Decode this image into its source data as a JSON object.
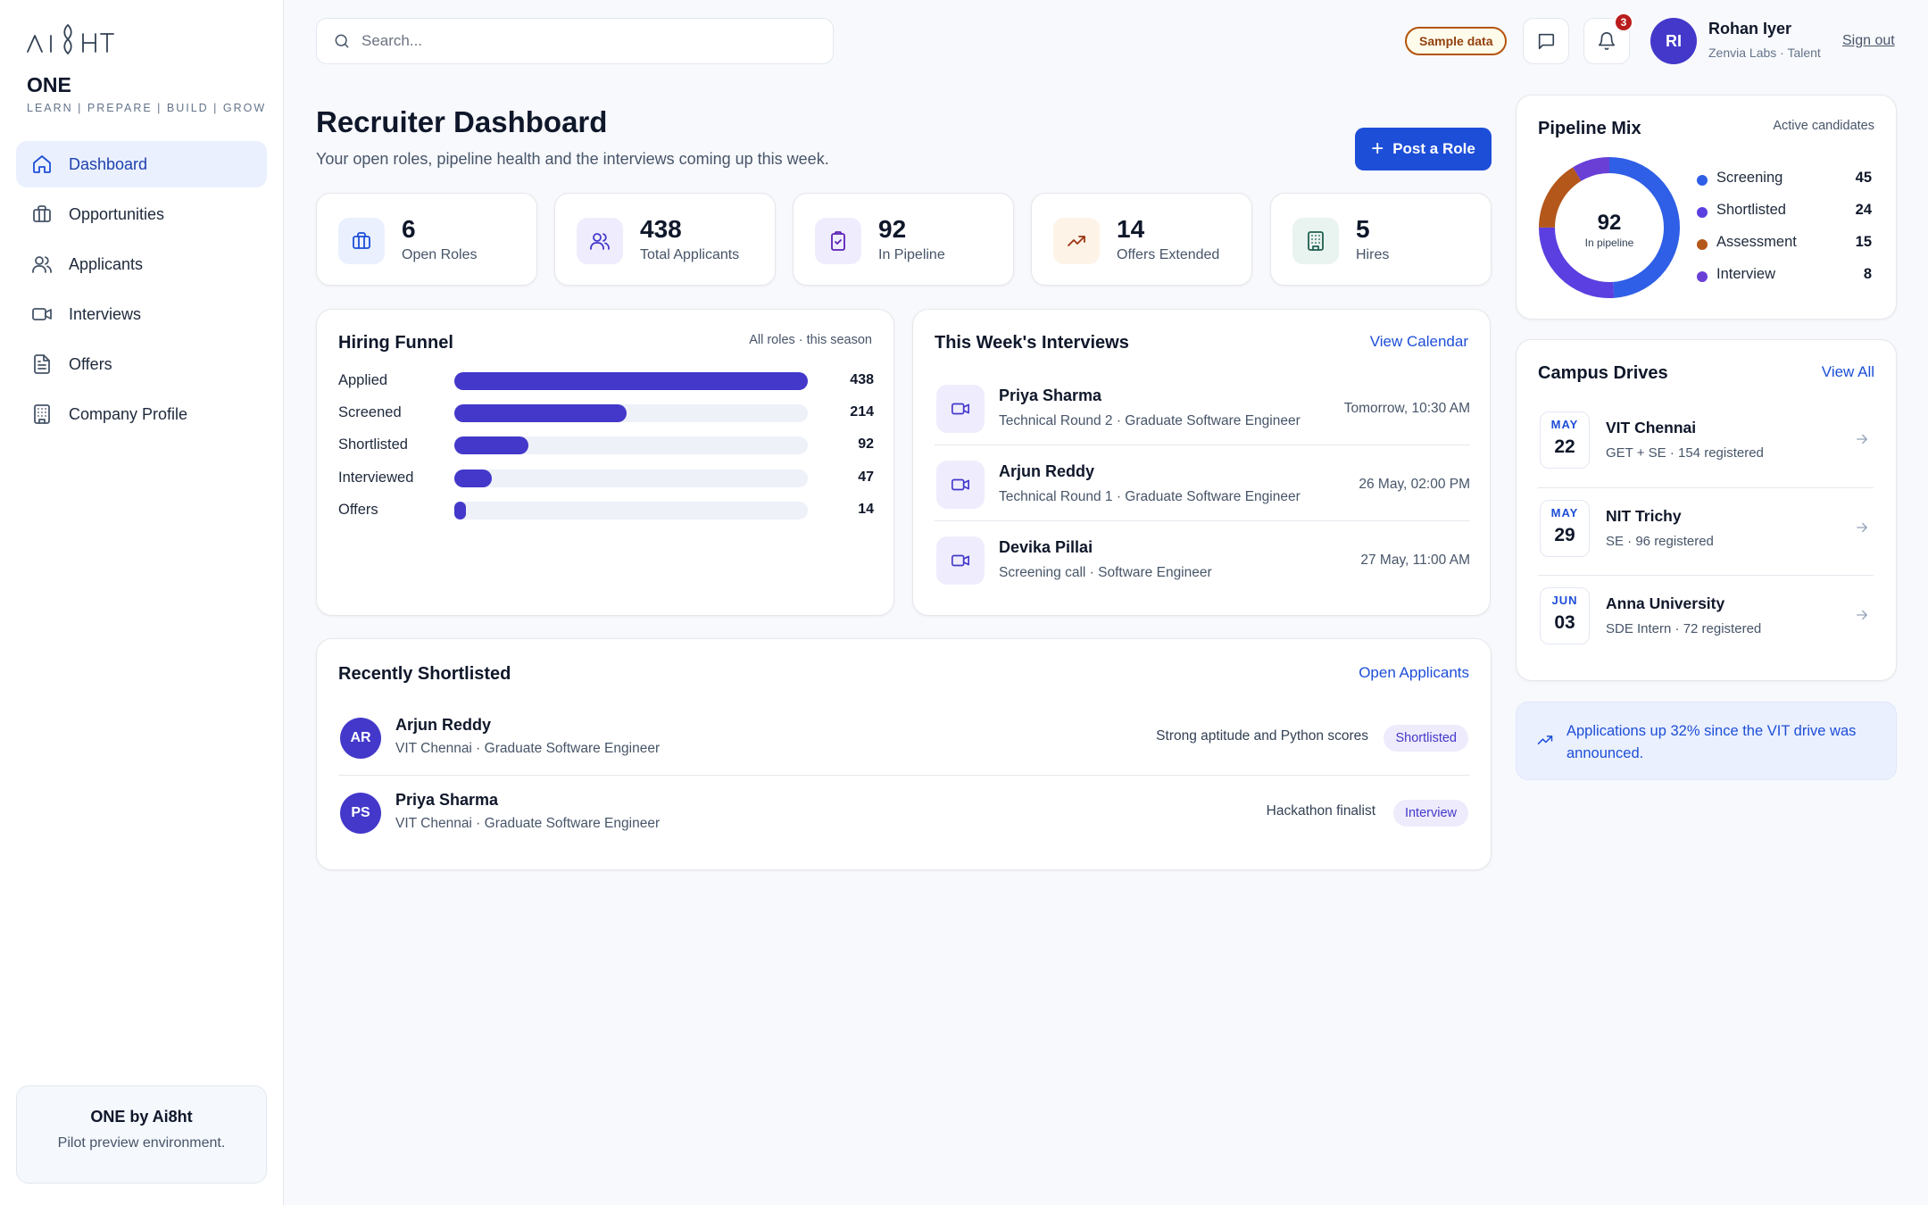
{
  "app": {
    "logo_text": "AI8HT",
    "brand": "ONE",
    "tagline": "LEARN | PREPARE | BUILD | GROW"
  },
  "sidebar": {
    "items": [
      {
        "label": "Dashboard",
        "icon": "home-icon",
        "active": true
      },
      {
        "label": "Opportunities",
        "icon": "briefcase-icon"
      },
      {
        "label": "Applicants",
        "icon": "users-icon"
      },
      {
        "label": "Interviews",
        "icon": "video-icon"
      },
      {
        "label": "Offers",
        "icon": "document-icon"
      },
      {
        "label": "Company Profile",
        "icon": "building-icon"
      }
    ],
    "footer_title": "ONE by Ai8ht",
    "footer_text": "Pilot preview environment."
  },
  "header": {
    "search_placeholder": "Search...",
    "sample_badge": "Sample data",
    "notification_count": "3",
    "user_initials": "RI",
    "user_name": "Rohan Iyer",
    "user_org": "Zenvia Labs · Talent",
    "sign_out": "Sign out"
  },
  "page": {
    "title": "Recruiter Dashboard",
    "subtitle": "Your open roles, pipeline health and the interviews coming up this week.",
    "post_role": "Post a Role"
  },
  "stats": [
    {
      "value": "6",
      "label": "Open Roles",
      "icon": "briefcase-icon",
      "bg": "#eaf0fe",
      "fg": "#1d4ed8"
    },
    {
      "value": "438",
      "label": "Total Applicants",
      "icon": "users-icon",
      "bg": "#efedfd",
      "fg": "#4338ca"
    },
    {
      "value": "92",
      "label": "In Pipeline",
      "icon": "clipboard-check-icon",
      "bg": "#efedfd",
      "fg": "#5b21b6"
    },
    {
      "value": "14",
      "label": "Offers Extended",
      "icon": "trending-up-icon",
      "bg": "#fdf3e7",
      "fg": "#9a3412"
    },
    {
      "value": "5",
      "label": "Hires",
      "icon": "building-icon",
      "bg": "#e9f3f0",
      "fg": "#1f5f4f"
    }
  ],
  "funnel": {
    "title": "Hiring Funnel",
    "meta": "All roles · this season",
    "max": 438,
    "rows": [
      {
        "label": "Applied",
        "value": 438
      },
      {
        "label": "Screened",
        "value": 214
      },
      {
        "label": "Shortlisted",
        "value": 92
      },
      {
        "label": "Interviewed",
        "value": 47
      },
      {
        "label": "Offers",
        "value": 14
      }
    ]
  },
  "interviews": {
    "title": "This Week's Interviews",
    "link": "View Calendar",
    "rows": [
      {
        "name": "Priya Sharma",
        "detail": "Technical Round 2 · Graduate Software Engineer",
        "time": "Tomorrow, 10:30 AM"
      },
      {
        "name": "Arjun Reddy",
        "detail": "Technical Round 1 · Graduate Software Engineer",
        "time": "26 May, 02:00 PM"
      },
      {
        "name": "Devika Pillai",
        "detail": "Screening call · Software Engineer",
        "time": "27 May, 11:00 AM"
      }
    ]
  },
  "shortlisted": {
    "title": "Recently Shortlisted",
    "link": "Open Applicants",
    "rows": [
      {
        "initials": "AR",
        "name": "Arjun Reddy",
        "detail": "VIT Chennai · Graduate Software Engineer",
        "note": "Strong aptitude and Python scores",
        "status": "Shortlisted"
      },
      {
        "initials": "PS",
        "name": "Priya Sharma",
        "detail": "VIT Chennai · Graduate Software Engineer",
        "note": "Hackathon finalist",
        "status": "Interview"
      }
    ]
  },
  "pipeline_mix": {
    "title": "Pipeline Mix",
    "meta": "Active candidates",
    "total": "92",
    "total_label": "In pipeline",
    "segments": [
      {
        "label": "Screening",
        "value": 45,
        "color": "#2f5fe6"
      },
      {
        "label": "Shortlisted",
        "value": 24,
        "color": "#5b3fe0"
      },
      {
        "label": "Assessment",
        "value": 15,
        "color": "#b4571a"
      },
      {
        "label": "Interview",
        "value": 8,
        "color": "#6a3fd6"
      }
    ]
  },
  "campus_drives": {
    "title": "Campus Drives",
    "link": "View All",
    "rows": [
      {
        "month": "MAY",
        "day": "22",
        "name": "VIT Chennai",
        "detail": "GET + SE · 154 registered"
      },
      {
        "month": "MAY",
        "day": "29",
        "name": "NIT Trichy",
        "detail": "SE · 96 registered"
      },
      {
        "month": "JUN",
        "day": "03",
        "name": "Anna University",
        "detail": "SDE Intern · 72 registered"
      }
    ]
  },
  "insight": {
    "text": "Applications up 32% since the VIT drive was announced.",
    "icon": "trending-up-icon"
  }
}
